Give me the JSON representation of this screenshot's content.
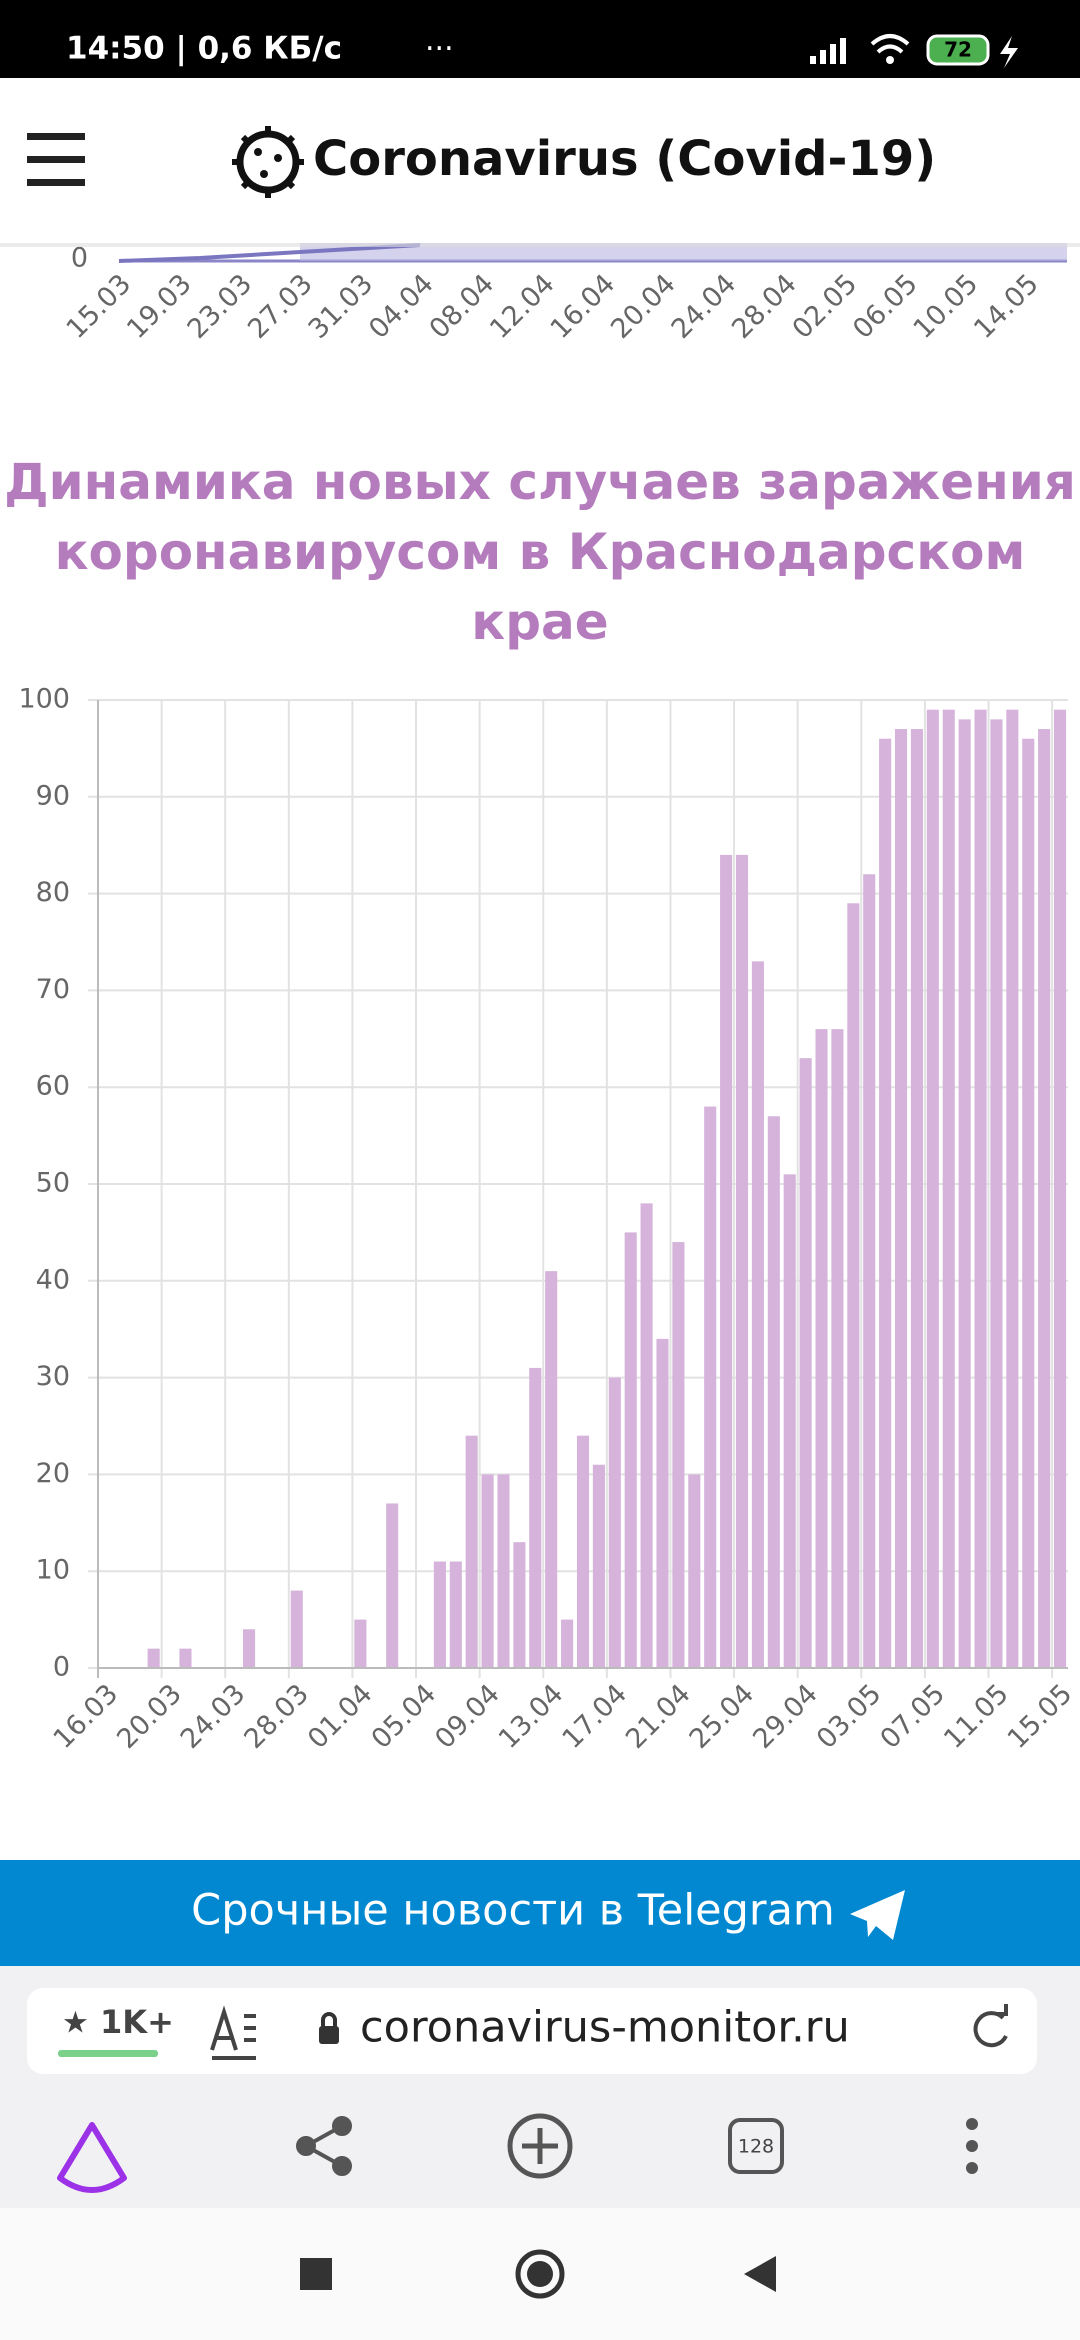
{
  "status_bar": {
    "time": "14:50 | 0,6 КБ/с",
    "battery": "72"
  },
  "header": {
    "title": "Coronavirus (Covid-19)"
  },
  "top_fragment": {
    "ytick": 0,
    "xlabels": [
      "15.03",
      "19.03",
      "23.03",
      "27.03",
      "31.03",
      "04.04",
      "08.04",
      "12.04",
      "16.04",
      "20.04",
      "24.04",
      "28.04",
      "02.05",
      "06.05",
      "10.05",
      "14.05"
    ]
  },
  "chart_data": {
    "type": "bar",
    "title": "Динамика новых случаев заражения коронавирусом в Краснодарском крае",
    "categories": [
      "16.03",
      null,
      null,
      null,
      "20.03",
      null,
      null,
      null,
      "24.03",
      null,
      null,
      null,
      "28.03",
      null,
      null,
      null,
      "01.04",
      null,
      null,
      null,
      "05.04",
      null,
      null,
      null,
      "09.04",
      null,
      null,
      null,
      "13.04",
      null,
      null,
      null,
      "17.04",
      null,
      null,
      null,
      "21.04",
      null,
      null,
      null,
      "25.04",
      null,
      null,
      null,
      "29.04",
      null,
      null,
      null,
      "03.05",
      null,
      null,
      null,
      "07.05",
      null,
      null,
      null,
      "11.05",
      null,
      null,
      null,
      "15.05"
    ],
    "values": [
      0,
      0,
      0,
      2,
      0,
      2,
      0,
      0,
      0,
      4,
      0,
      0,
      8,
      0,
      0,
      0,
      5,
      0,
      17,
      0,
      0,
      11,
      11,
      24,
      20,
      20,
      13,
      31,
      41,
      5,
      24,
      21,
      30,
      45,
      48,
      34,
      44,
      20,
      58,
      84,
      84,
      73,
      57,
      51,
      63,
      66,
      66,
      79,
      82,
      96,
      97,
      97,
      99,
      99,
      98,
      99,
      98,
      99,
      96,
      97,
      99
    ],
    "color": "#d5b3db",
    "ylim": [
      0,
      100
    ],
    "yticks": [
      0,
      10,
      20,
      30,
      40,
      50,
      60,
      70,
      80,
      90,
      100
    ],
    "grid": true
  },
  "banner": {
    "text": "Срочные новости в Telegram"
  },
  "browser": {
    "rating": "1K+",
    "url": "coronavirus-monitor.ru",
    "tabs": "128"
  }
}
